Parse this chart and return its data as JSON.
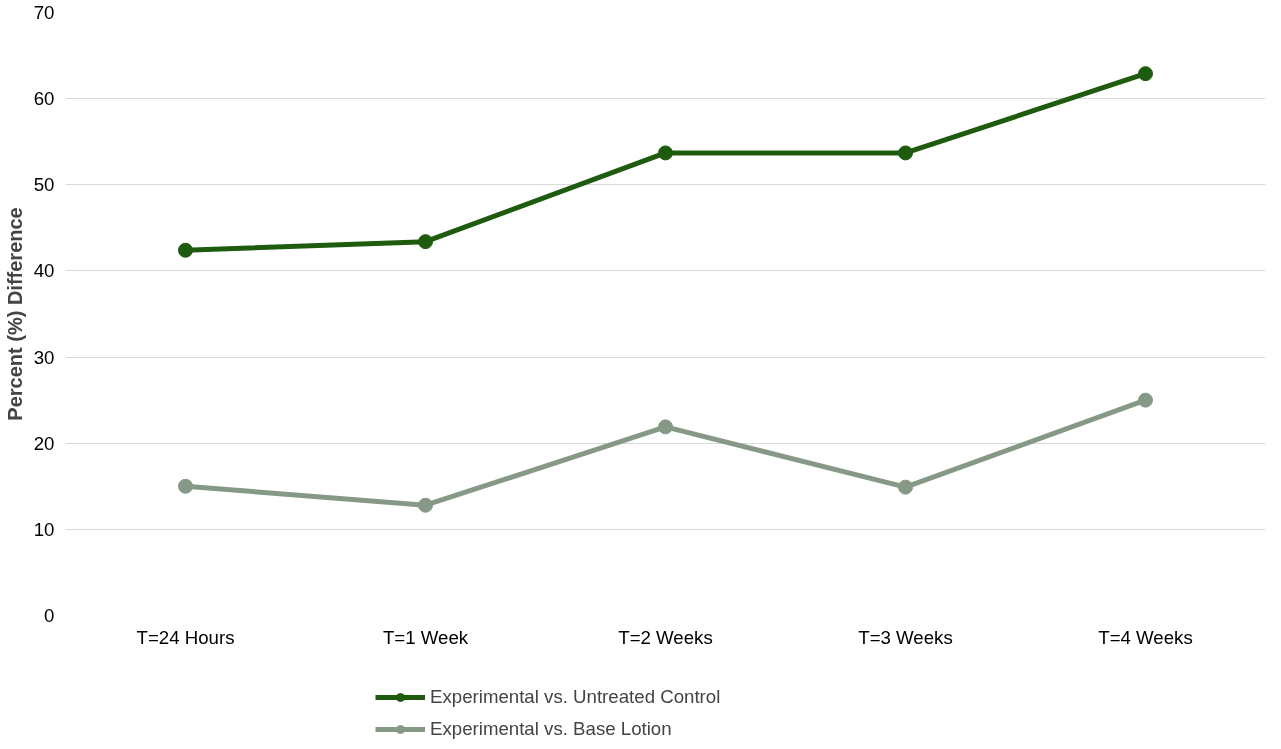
{
  "chart_data": {
    "type": "line",
    "ylabel": "Percent (%) Difference",
    "categories": [
      "T=24 Hours",
      "T=1 Week",
      "T=2 Weeks",
      "T=3 Weeks",
      "T=4 Weeks"
    ],
    "series": [
      {
        "name": "Experimental vs. Untreated Control",
        "color": "#1e5b0e",
        "values": [
          42.4,
          43.4,
          53.7,
          53.7,
          62.9
        ]
      },
      {
        "name": "Experimental vs. Base Lotion",
        "color": "#869986",
        "values": [
          15.0,
          12.8,
          21.9,
          14.9,
          25.0
        ]
      }
    ],
    "ylim": [
      0,
      70
    ],
    "yticks": [
      0,
      10,
      20,
      30,
      40,
      50,
      60,
      70
    ],
    "grid": "y",
    "legend": "bottom",
    "marker": "circle",
    "line_style": "solid"
  }
}
